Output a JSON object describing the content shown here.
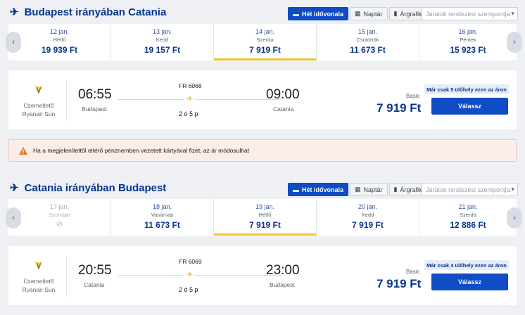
{
  "outbound": {
    "title": "Budapest irányában Catania",
    "views": [
      "Hét idővonala",
      "Naptár",
      "Árgrafikon"
    ],
    "sort_placeholder": "Járatok rendezési szempontja:",
    "dates": [
      {
        "date": "12 jan.",
        "weekday": "Hétfő",
        "price": "19 939 Ft"
      },
      {
        "date": "13 jan.",
        "weekday": "Kedd",
        "price": "19 157 Ft"
      },
      {
        "date": "14 jan.",
        "weekday": "Szerda",
        "price": "7 919 Ft"
      },
      {
        "date": "15 jan.",
        "weekday": "Csütörtök",
        "price": "11 673 Ft"
      },
      {
        "date": "16 jan.",
        "weekday": "Péntek",
        "price": "15 923 Ft"
      }
    ],
    "selected_index": 2,
    "flight": {
      "operator_label": "Üzemeltető",
      "operator": "Ryanair Sun",
      "depart_time": "06:55",
      "depart_city": "Budapest",
      "flight_number": "FR 6068",
      "duration": "2 ó 5 p",
      "arrive_time": "09:00",
      "arrive_city": "Catania",
      "fare_type": "Basic",
      "price": "7 919 Ft",
      "seat_note": "Már csak 5 ülőhely ezen az áron",
      "select_label": "Válassz"
    }
  },
  "warning": "Ha a megjelenítettől eltérő pénznemben vezetett kártyával fizet, az ár módosulhat",
  "inbound": {
    "title": "Catania irányában Budapest",
    "views": [
      "Hét idővonala",
      "Naptár",
      "Árgrafikon"
    ],
    "sort_placeholder": "Járatok rendezési szempontja:",
    "dates": [
      {
        "date": "17 jan.",
        "weekday": "Szombat",
        "price": ""
      },
      {
        "date": "18 jan.",
        "weekday": "Vasárnap",
        "price": "11 673 Ft"
      },
      {
        "date": "19 jan.",
        "weekday": "Hétfő",
        "price": "7 919 Ft"
      },
      {
        "date": "20 jan.",
        "weekday": "Kedd",
        "price": "7 919 Ft"
      },
      {
        "date": "21 jan.",
        "weekday": "Szerda",
        "price": "12 886 Ft"
      }
    ],
    "selected_index": 2,
    "flight": {
      "operator_label": "Üzemeltető",
      "operator": "Ryanair Sun",
      "depart_time": "20:55",
      "depart_city": "Catania",
      "flight_number": "FR 6069",
      "duration": "2 ó 5 p",
      "arrive_time": "23:00",
      "arrive_city": "Budapest",
      "fare_type": "Basic",
      "price": "7 919 Ft",
      "seat_note": "Már csak 4 ülőhely ezen az áron",
      "select_label": "Válassz"
    }
  },
  "colors": {
    "brand": "#073590",
    "accent_yellow": "#f1c933",
    "button": "#0f4cc5"
  }
}
